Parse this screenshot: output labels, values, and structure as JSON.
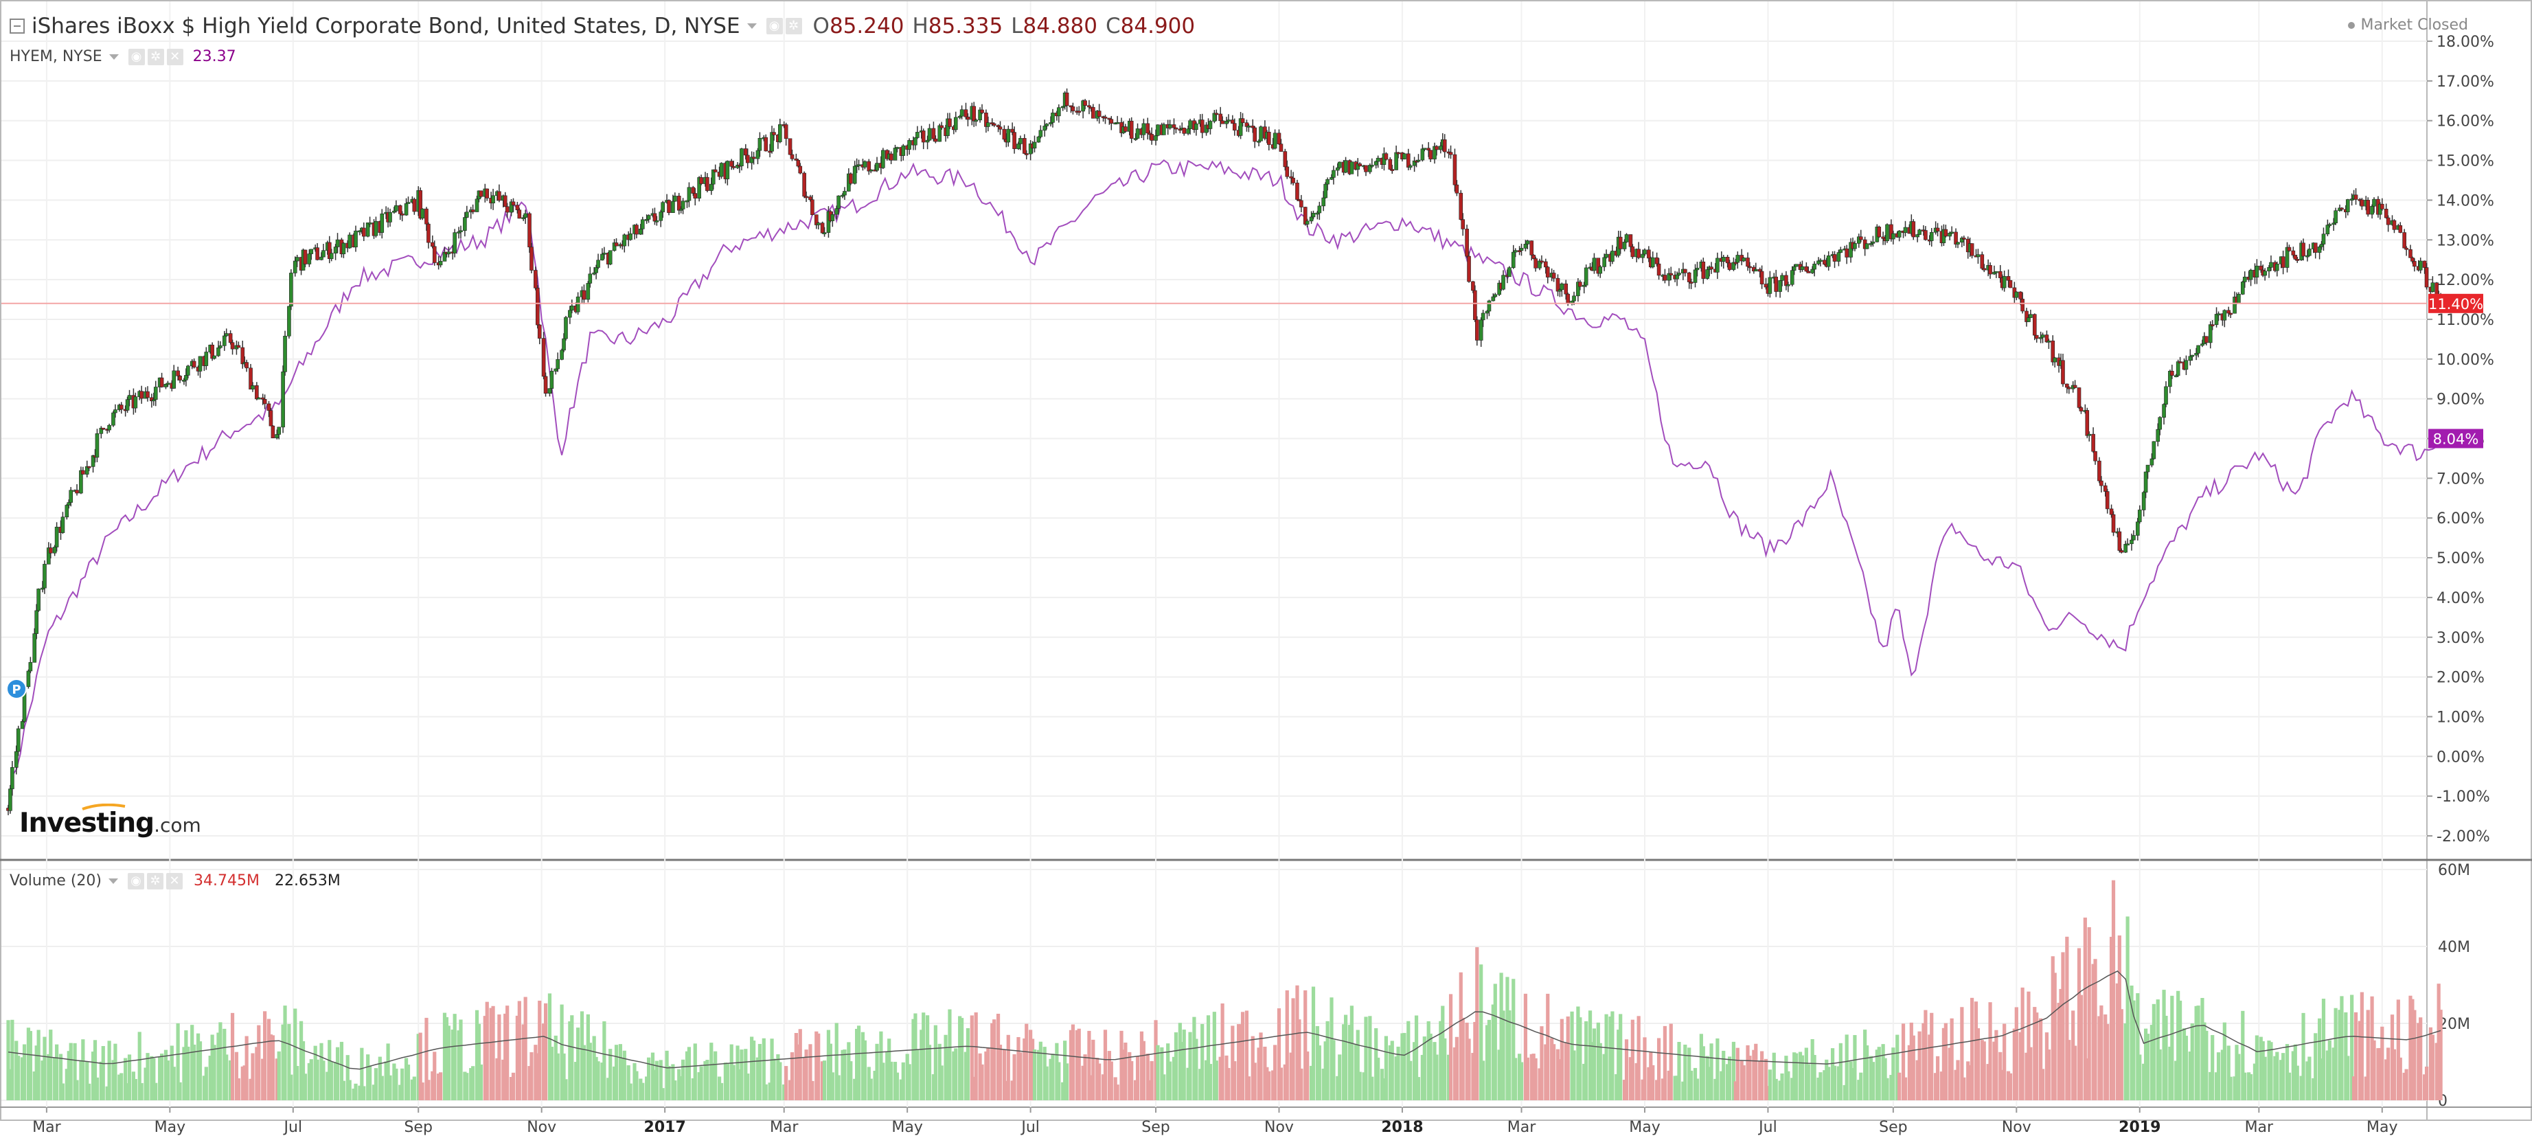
{
  "header": {
    "title": "iShares iBoxx $ High Yield Corporate Bond, United States, D, NYSE",
    "ohlc": [
      {
        "key": "O",
        "value": "85.240"
      },
      {
        "key": "H",
        "value": "85.335"
      },
      {
        "key": "L",
        "value": "84.880"
      },
      {
        "key": "C",
        "value": "84.900"
      }
    ],
    "status": "Market Closed"
  },
  "compare": {
    "label": "HYEM, NYSE",
    "value": "23.37"
  },
  "volume_header": {
    "label": "Volume (20)",
    "value": "34.745M",
    "ma_value": "22.653M"
  },
  "logo": {
    "brand": "Investing",
    "suffix": ".com"
  },
  "marker": "P",
  "colors": {
    "up": "#2e8b2e",
    "down": "#b22222",
    "compare_line": "#a24dbd",
    "vol_up": "#9ddc9d",
    "vol_down": "#e8a0a0",
    "price_label": "#e8262b",
    "compare_label": "#a21caf"
  },
  "chart_data": {
    "type": "line",
    "title": "iShares iBoxx $ High Yield Corporate Bond, United States, D, NYSE",
    "x_tick_labels": [
      "Mar",
      "May",
      "Jul",
      "Sep",
      "Nov",
      "2017",
      "Mar",
      "May",
      "Jul",
      "Sep",
      "Nov",
      "2018",
      "Mar",
      "May",
      "Jul",
      "Sep",
      "Nov",
      "2019",
      "Mar",
      "May"
    ],
    "ylabel": "",
    "y_tick_labels": [
      "18.00%",
      "17.00%",
      "16.00%",
      "15.00%",
      "14.00%",
      "13.00%",
      "12.00%",
      "11.00%",
      "10.00%",
      "9.00%",
      "8.00%",
      "7.00%",
      "6.00%",
      "5.00%",
      "4.00%",
      "3.00%",
      "2.00%",
      "1.00%",
      "0.00%",
      "-1.00%",
      "-2.00%"
    ],
    "ylim": [
      -2.4,
      18.8
    ],
    "grid": true,
    "last_values": {
      "HYG": "11.40%",
      "HYEM": "8.04%"
    },
    "series": [
      {
        "name": "HYG",
        "style": "candlestick",
        "x": [
          "2016-02-11",
          "2016-03-01",
          "2016-04-01",
          "2016-05-02",
          "2016-06-01",
          "2016-06-24",
          "2016-07-01",
          "2016-08-01",
          "2016-09-01",
          "2016-09-12",
          "2016-10-03",
          "2016-10-25",
          "2016-11-04",
          "2016-11-15",
          "2016-12-01",
          "2017-01-03",
          "2017-02-01",
          "2017-03-01",
          "2017-03-20",
          "2017-04-03",
          "2017-05-01",
          "2017-06-01",
          "2017-07-03",
          "2017-07-20",
          "2017-08-10",
          "2017-09-01",
          "2017-10-02",
          "2017-11-01",
          "2017-11-15",
          "2017-12-01",
          "2018-01-02",
          "2018-01-25",
          "2018-02-08",
          "2018-03-01",
          "2018-03-25",
          "2018-04-20",
          "2018-05-15",
          "2018-06-15",
          "2018-07-02",
          "2018-08-01",
          "2018-09-03",
          "2018-10-01",
          "2018-10-25",
          "2018-11-15",
          "2018-12-03",
          "2018-12-24",
          "2019-01-02",
          "2019-01-15",
          "2019-02-01",
          "2019-03-01",
          "2019-04-01",
          "2019-04-15",
          "2019-05-01",
          "2019-05-15",
          "2019-05-31"
        ],
        "y": [
          -1.3,
          5.0,
          8.5,
          9.5,
          10.5,
          8.0,
          12.4,
          13.0,
          14.0,
          12.3,
          14.3,
          13.5,
          9.0,
          11.0,
          12.5,
          13.8,
          14.8,
          15.7,
          13.2,
          14.6,
          15.3,
          16.2,
          15.2,
          16.6,
          15.8,
          15.7,
          16.0,
          15.5,
          13.3,
          14.8,
          15.0,
          15.4,
          10.6,
          13.0,
          11.6,
          13.0,
          12.0,
          12.5,
          11.8,
          12.6,
          13.3,
          13.1,
          12.0,
          10.5,
          8.9,
          4.9,
          6.3,
          9.5,
          10.4,
          12.3,
          12.9,
          14.1,
          13.7,
          12.8,
          11.4
        ]
      },
      {
        "name": "HYEM",
        "style": "line",
        "x": [
          "2016-02-11",
          "2016-03-01",
          "2016-04-01",
          "2016-05-02",
          "2016-06-01",
          "2016-06-24",
          "2016-07-01",
          "2016-08-01",
          "2016-09-01",
          "2016-10-03",
          "2016-10-25",
          "2016-11-04",
          "2016-11-10",
          "2016-11-25",
          "2016-12-15",
          "2017-01-03",
          "2017-02-01",
          "2017-03-01",
          "2017-04-03",
          "2017-05-01",
          "2017-06-01",
          "2017-07-03",
          "2017-08-01",
          "2017-09-01",
          "2017-10-02",
          "2017-11-01",
          "2017-11-15",
          "2017-12-01",
          "2018-01-02",
          "2018-02-01",
          "2018-02-12",
          "2018-03-01",
          "2018-04-02",
          "2018-04-20",
          "2018-05-01",
          "2018-05-15",
          "2018-06-01",
          "2018-06-15",
          "2018-07-02",
          "2018-07-20",
          "2018-08-01",
          "2018-08-15",
          "2018-08-27",
          "2018-09-03",
          "2018-09-10",
          "2018-09-24",
          "2018-10-01",
          "2018-10-15",
          "2018-11-01",
          "2018-11-15",
          "2018-12-01",
          "2018-12-15",
          "2018-12-24",
          "2019-01-02",
          "2019-01-15",
          "2019-02-01",
          "2019-03-01",
          "2019-03-20",
          "2019-04-01",
          "2019-04-15",
          "2019-05-01",
          "2019-05-20",
          "2019-05-31"
        ],
        "y": [
          -1.1,
          3.0,
          5.5,
          7.0,
          8.2,
          8.8,
          9.5,
          12.0,
          12.5,
          13.0,
          14.0,
          10.0,
          7.6,
          10.5,
          10.5,
          11.0,
          12.8,
          13.3,
          13.8,
          14.7,
          14.5,
          12.5,
          14.0,
          14.8,
          14.8,
          14.5,
          13.3,
          13.0,
          13.5,
          12.7,
          12.4,
          12.0,
          11.0,
          11.0,
          10.3,
          7.3,
          7.5,
          5.9,
          5.2,
          6.0,
          7.0,
          4.8,
          2.6,
          3.8,
          1.9,
          5.2,
          5.8,
          5.0,
          4.8,
          3.3,
          3.5,
          3.0,
          2.7,
          4.0,
          5.2,
          6.5,
          7.6,
          6.5,
          8.2,
          9.1,
          8.0,
          7.6,
          8.0
        ]
      }
    ],
    "volume": {
      "name": "Volume (20)",
      "y_tick_labels": [
        "60M",
        "40M",
        "20M",
        "0"
      ],
      "ylim": [
        0,
        74
      ],
      "unit": "M",
      "x": [
        "2016-02-11",
        "2016-04-01",
        "2016-06-24",
        "2016-08-01",
        "2016-09-12",
        "2016-11-04",
        "2016-11-10",
        "2017-01-03",
        "2017-03-20",
        "2017-06-01",
        "2017-08-10",
        "2017-11-15",
        "2018-01-02",
        "2018-02-08",
        "2018-03-25",
        "2018-06-15",
        "2018-08-01",
        "2018-10-25",
        "2018-11-15",
        "2018-12-03",
        "2018-12-24",
        "2019-01-02",
        "2019-02-01",
        "2019-03-01",
        "2019-04-15",
        "2019-05-15",
        "2019-05-31"
      ],
      "values": [
        24,
        18,
        30,
        15,
        26,
        32,
        28,
        16,
        22,
        27,
        20,
        34,
        22,
        45,
        28,
        20,
        18,
        32,
        40,
        54,
        66,
        28,
        38,
        24,
        32,
        30,
        34.7
      ]
    }
  }
}
